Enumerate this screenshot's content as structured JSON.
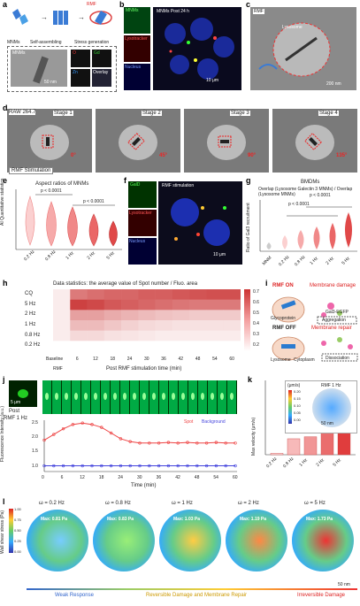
{
  "panels": {
    "a": {
      "label": "a",
      "steps": [
        "MNMs",
        "Self-assembling",
        "Stress generation"
      ],
      "rmf": "RMF",
      "inset_title": "MNMs",
      "scale": "50 nm",
      "eds": [
        "Zn",
        "O",
        "Gd",
        "Overlay"
      ]
    },
    "b": {
      "label": "b",
      "channels": [
        "MNMs",
        "Lysotracker",
        "Nucleus"
      ],
      "title": "MNMs Post 24 h",
      "scale": "10 μm"
    },
    "c": {
      "label": "c",
      "rmf": "RMF",
      "lysosome": "Lysosome",
      "scale": "200 nm"
    },
    "d": {
      "label": "d",
      "cell": "RAW 264.7",
      "stages": [
        "Stage 1",
        "Stage 2",
        "Stage 3",
        "Stage 4"
      ],
      "angles": [
        "0°",
        "45°",
        "90°",
        "135°"
      ],
      "stim": "RMF Stimulation"
    },
    "e": {
      "label": "e",
      "title": "Aspect ratios of MNMs",
      "ylabel": "AI Quantitative statistics",
      "pval": [
        "p < 0.0001",
        "p < 0.0001"
      ],
      "categories": [
        "0.2 Hz",
        "0.8 Hz",
        "1 Hz",
        "2 Hz",
        "5 Hz"
      ]
    },
    "f": {
      "label": "f",
      "channels": [
        "GalD",
        "Lysotracker",
        "Nucleus"
      ],
      "title": "RMF stimulation",
      "scale": "10 μm"
    },
    "g": {
      "label": "g",
      "title": "BMDMs",
      "legend": "Overlap (Lysosome Galectin 3 MNMs) / Overlap (Lysosome MNMs)",
      "ylabel": "Ratio of Gal3 recruitment",
      "pval": [
        "p < 0.0001",
        "p < 0.0001"
      ],
      "categories": [
        "MNM",
        "0.2 Hz",
        "0.8 Hz",
        "1 Hz",
        "2 Hz",
        "5 Hz"
      ]
    },
    "h": {
      "label": "h",
      "title": "Data statistics: the average value of Spot number / Fluo. area",
      "rows": [
        "CQ",
        "5 Hz",
        "2 Hz",
        "1 Hz",
        "0.8 Hz",
        "0.2 Hz"
      ],
      "cols": [
        "Baseline",
        "6",
        "12",
        "18",
        "24",
        "30",
        "36",
        "42",
        "48",
        "54",
        "60"
      ],
      "xlabel": "Post RMF stimulation time (min)",
      "baseline_sub": "RMF",
      "scale": [
        "0.7",
        "0.6",
        "0.5",
        "0.4",
        "0.3",
        "0.2"
      ]
    },
    "i": {
      "label": "i",
      "on": "RMF ON",
      "off": "RMF OFF",
      "damage": "Membrane damage",
      "repair": "Membrane repair",
      "labels": [
        "Glycoprotein",
        "Lysosome",
        "Cytoplasm"
      ],
      "gal": "Gal3-EGFP",
      "agg": "Aggregation",
      "dis": "Dissociation"
    },
    "j": {
      "label": "j",
      "post": "Post",
      "rmf": "RMF 1 Hz",
      "scale": "5 μm",
      "ylabel": "Fluorescence Intensity (a.u.)",
      "xlabel": "Time (min)",
      "legend": [
        "Spot",
        "Background"
      ],
      "yticks": [
        "2.5",
        "2.0",
        "1.5",
        "1.0"
      ],
      "xticks": [
        "0",
        "6",
        "12",
        "18",
        "24",
        "30",
        "36",
        "42",
        "48",
        "54",
        "60"
      ]
    },
    "k": {
      "label": "k",
      "ylabel": "Max velocity (μm/s)",
      "inset": "RMF 1 Hz",
      "cbar_unit": "(μm/s)",
      "cbar": [
        "0.20",
        "0.15",
        "0.10",
        "0.05",
        "0.00"
      ],
      "categories": [
        "0.2 Hz",
        "0.8 Hz",
        "1 Hz",
        "2 Hz",
        "5 Hz"
      ],
      "scale": "50 nm"
    },
    "l": {
      "label": "l",
      "ylabel": "Wall shear stress (Pa)",
      "cbar": [
        "1.00",
        "0.75",
        "0.50",
        "0.25",
        "0.00"
      ],
      "sims": [
        {
          "w": "ω = 0.2 Hz",
          "max": "Max: 0.81 Pa"
        },
        {
          "w": "ω = 0.8 Hz",
          "max": "Max: 0.83 Pa"
        },
        {
          "w": "ω = 1 Hz",
          "max": "Max: 1.03 Pa"
        },
        {
          "w": "ω = 2 Hz",
          "max": "Max: 1.19 Pa"
        },
        {
          "w": "ω = 5 Hz",
          "max": "Max: 1.73 Pa"
        }
      ],
      "bands": [
        "Weak Response",
        "Reversible Damage and Membrane Repair",
        "Irreversible Damage"
      ],
      "scale": "50 nm"
    }
  },
  "chart_data": [
    {
      "type": "bar",
      "title": "",
      "categories": [
        "0.2 Hz",
        "0.8 Hz",
        "1 Hz",
        "2 Hz",
        "5 Hz"
      ],
      "values": [
        0.05,
        0.55,
        0.62,
        1.1,
        2.3
      ],
      "ylabel": "Max velocity (μm/s)"
    },
    {
      "type": "line",
      "title": "",
      "x": [
        0,
        3,
        6,
        9,
        12,
        15,
        18,
        21,
        24,
        27,
        30,
        33,
        36,
        39,
        42,
        45,
        48,
        51,
        54,
        57,
        60
      ],
      "series": [
        {
          "name": "Spot",
          "values": [
            1.9,
            2.1,
            2.3,
            2.45,
            2.5,
            2.45,
            2.35,
            2.15,
            1.95,
            1.85,
            1.8,
            1.8,
            1.8,
            1.82,
            1.8,
            1.82,
            1.8,
            1.8,
            1.82,
            1.8,
            1.8
          ]
        },
        {
          "name": "Background",
          "values": [
            1.0,
            1.0,
            1.0,
            1.0,
            1.0,
            1.0,
            1.0,
            1.0,
            1.0,
            1.0,
            1.0,
            1.0,
            1.0,
            1.0,
            1.0,
            1.0,
            1.0,
            1.0,
            1.0,
            1.0,
            1.0
          ]
        }
      ]
    },
    {
      "type": "heatmap",
      "title": "Data statistics: the average value of Spot number / Fluo. area",
      "rows": [
        "CQ",
        "5 Hz",
        "2 Hz",
        "1 Hz",
        "0.8 Hz",
        "0.2 Hz"
      ],
      "cols": [
        "Baseline",
        "6",
        "12",
        "18",
        "24",
        "30",
        "36",
        "42",
        "48",
        "54",
        "60"
      ],
      "values": [
        [
          0.25,
          0.55,
          0.58,
          0.6,
          0.6,
          0.62,
          0.62,
          0.64,
          0.65,
          0.66,
          0.66
        ],
        [
          0.25,
          0.7,
          0.68,
          0.64,
          0.62,
          0.6,
          0.58,
          0.56,
          0.55,
          0.55,
          0.55
        ],
        [
          0.25,
          0.45,
          0.45,
          0.42,
          0.4,
          0.38,
          0.36,
          0.35,
          0.34,
          0.34,
          0.34
        ],
        [
          0.25,
          0.38,
          0.38,
          0.35,
          0.32,
          0.3,
          0.29,
          0.28,
          0.28,
          0.28,
          0.28
        ],
        [
          0.25,
          0.3,
          0.3,
          0.28,
          0.27,
          0.26,
          0.25,
          0.25,
          0.25,
          0.25,
          0.25
        ],
        [
          0.2,
          0.2,
          0.2,
          0.2,
          0.2,
          0.2,
          0.2,
          0.2,
          0.2,
          0.2,
          0.2
        ]
      ]
    }
  ]
}
